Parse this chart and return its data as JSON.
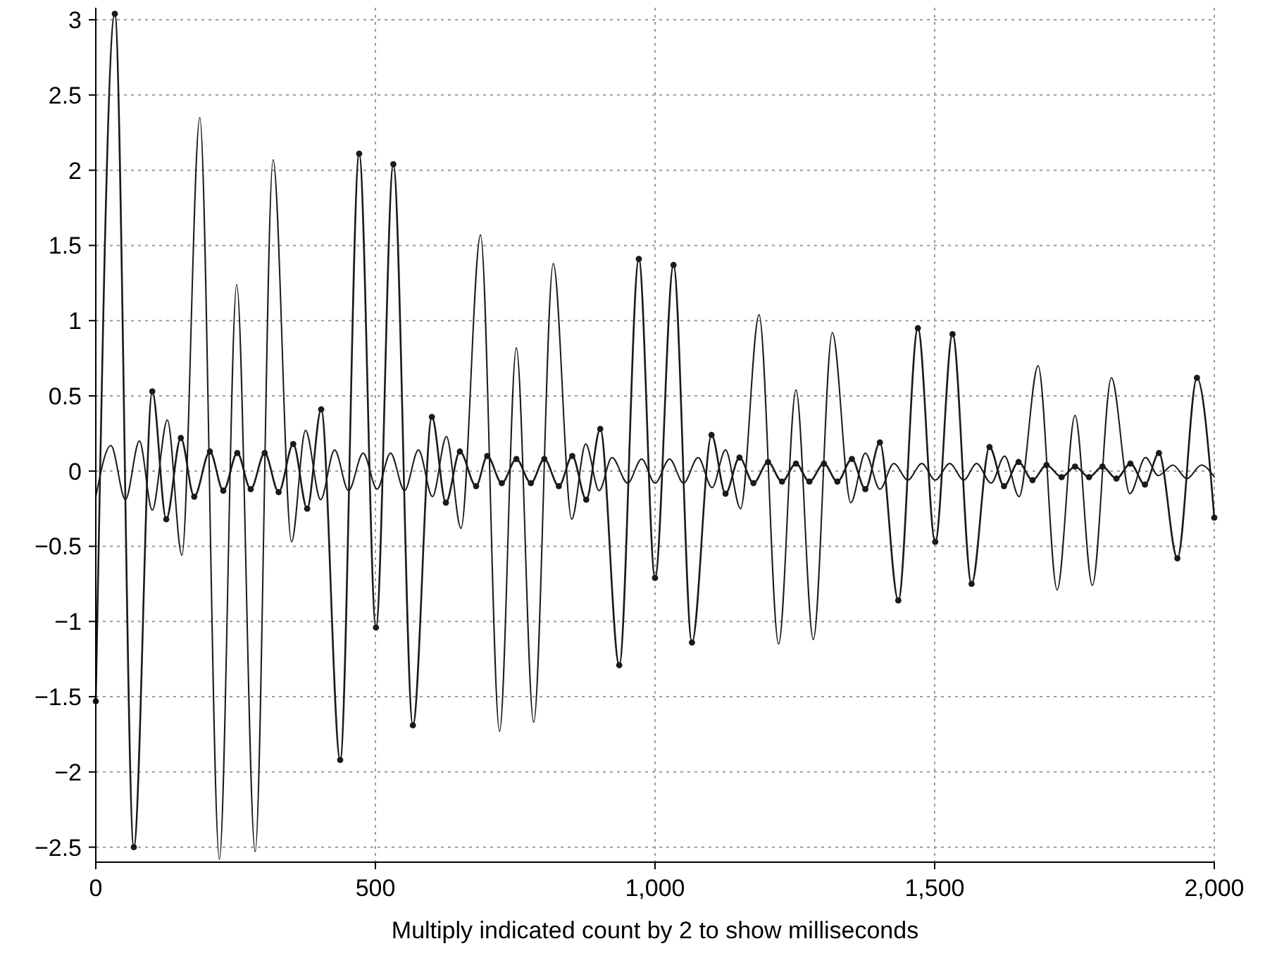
{
  "chart_data": {
    "type": "line",
    "xlabel": "Multiply indicated count by 2 to show milliseconds",
    "xlim": [
      0,
      2000
    ],
    "ylim": [
      -2.6,
      3.08
    ],
    "xticks": [
      0,
      500,
      {
        "value": 1000,
        "label": "1,000"
      },
      {
        "value": 1500,
        "label": "1,500"
      },
      {
        "value": 2000,
        "label": "2,000"
      }
    ],
    "yticks": [
      {
        "value": -2.5,
        "label": "−2.5"
      },
      {
        "value": -2,
        "label": "−2"
      },
      {
        "value": -1.5,
        "label": "−1.5"
      },
      {
        "value": -1,
        "label": "−1"
      },
      {
        "value": -0.5,
        "label": "−0.5"
      },
      0,
      0.5,
      1,
      1.5,
      2,
      2.5,
      3
    ],
    "grid": true,
    "series": [
      {
        "color": "#1a1a1a",
        "marker": "circle",
        "x": [
          0,
          34,
          68,
          101,
          126,
          152,
          176,
          204,
          228,
          253,
          277,
          302,
          327,
          353,
          378,
          403,
          437,
          471,
          501,
          532,
          567,
          601,
          626,
          651,
          680,
          700,
          726,
          752,
          778,
          802,
          828,
          852,
          877,
          902,
          936,
          971,
          1000,
          1033,
          1066,
          1101,
          1126,
          1151,
          1176,
          1202,
          1227,
          1252,
          1276,
          1302,
          1326,
          1352,
          1376,
          1402,
          1435,
          1470,
          1501,
          1532,
          1566,
          1598,
          1624,
          1650,
          1675,
          1700,
          1727,
          1751,
          1776,
          1800,
          1825,
          1850,
          1876,
          1901,
          1934,
          1969,
          2000
        ],
        "values": [
          -1.53,
          3.04,
          -2.5,
          0.53,
          -0.32,
          0.22,
          -0.17,
          0.13,
          -0.13,
          0.12,
          -0.12,
          0.12,
          -0.14,
          0.18,
          -0.25,
          0.41,
          -1.92,
          2.11,
          -1.04,
          2.04,
          -1.69,
          0.36,
          -0.21,
          0.13,
          -0.1,
          0.1,
          -0.08,
          0.08,
          -0.08,
          0.08,
          -0.1,
          0.1,
          -0.19,
          0.28,
          -1.29,
          1.41,
          -0.71,
          1.37,
          -1.14,
          0.24,
          -0.15,
          0.09,
          -0.08,
          0.06,
          -0.07,
          0.05,
          -0.07,
          0.05,
          -0.07,
          0.08,
          -0.12,
          0.19,
          -0.86,
          0.95,
          -0.47,
          0.91,
          -0.75,
          0.16,
          -0.1,
          0.06,
          -0.06,
          0.04,
          -0.04,
          0.03,
          -0.04,
          0.03,
          -0.05,
          0.05,
          -0.09,
          0.12,
          -0.58,
          0.62,
          -0.31
        ]
      },
      {
        "color": "#1a1a1a",
        "marker": "none",
        "x": [
          0,
          27,
          53,
          78,
          101,
          128,
          154,
          186,
          221,
          252,
          285,
          317,
          350,
          375,
          402,
          427,
          452,
          478,
          503,
          527,
          552,
          577,
          602,
          627,
          653,
          688,
          722,
          752,
          783,
          818,
          851,
          876,
          900,
          923,
          951,
          976,
          1000,
          1026,
          1051,
          1077,
          1102,
          1126,
          1153,
          1186,
          1221,
          1252,
          1283,
          1317,
          1350,
          1376,
          1402,
          1427,
          1452,
          1477,
          1501,
          1527,
          1552,
          1575,
          1601,
          1625,
          1651,
          1685,
          1719,
          1751,
          1782,
          1816,
          1849,
          1877,
          1900,
          1926,
          1951,
          1977,
          2000
        ],
        "values": [
          -0.17,
          0.17,
          -0.19,
          0.2,
          -0.26,
          0.34,
          -0.56,
          2.35,
          -2.58,
          1.24,
          -2.53,
          2.07,
          -0.47,
          0.27,
          -0.19,
          0.14,
          -0.13,
          0.12,
          -0.12,
          0.12,
          -0.13,
          0.14,
          -0.17,
          0.23,
          -0.38,
          1.57,
          -1.73,
          0.82,
          -1.67,
          1.38,
          -0.32,
          0.18,
          -0.13,
          0.09,
          -0.08,
          0.08,
          -0.08,
          0.08,
          -0.08,
          0.09,
          -0.11,
          0.14,
          -0.25,
          1.04,
          -1.15,
          0.54,
          -1.12,
          0.92,
          -0.21,
          0.12,
          -0.12,
          0.05,
          -0.06,
          0.05,
          -0.06,
          0.05,
          -0.06,
          0.05,
          -0.08,
          0.1,
          -0.17,
          0.7,
          -0.79,
          0.37,
          -0.76,
          0.62,
          -0.15,
          0.09,
          -0.03,
          0.04,
          -0.05,
          0.04,
          -0.04
        ]
      }
    ]
  }
}
